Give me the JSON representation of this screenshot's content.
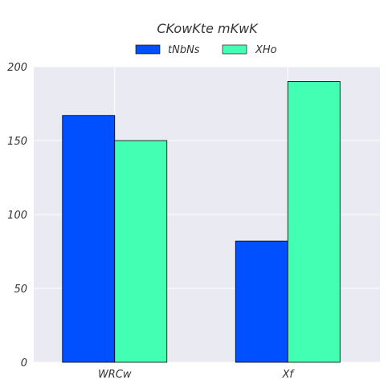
{
  "chart_data": {
    "type": "bar",
    "title": "CKowKte mKwK",
    "categories": [
      "WRCw",
      "Xf"
    ],
    "series": [
      {
        "name": "tNbNs",
        "values": [
          167,
          82
        ],
        "color": "#0050ff"
      },
      {
        "name": "XHo",
        "values": [
          150,
          190
        ],
        "color": "#42ffb4"
      }
    ],
    "yticks": [
      "0",
      "50",
      "100",
      "150",
      "200"
    ],
    "ylim": [
      0,
      200
    ],
    "xlabel": "",
    "ylabel": "",
    "grid": true,
    "legend": "top-center",
    "background": "#e9eaf2",
    "bar_edge": "#000000"
  }
}
